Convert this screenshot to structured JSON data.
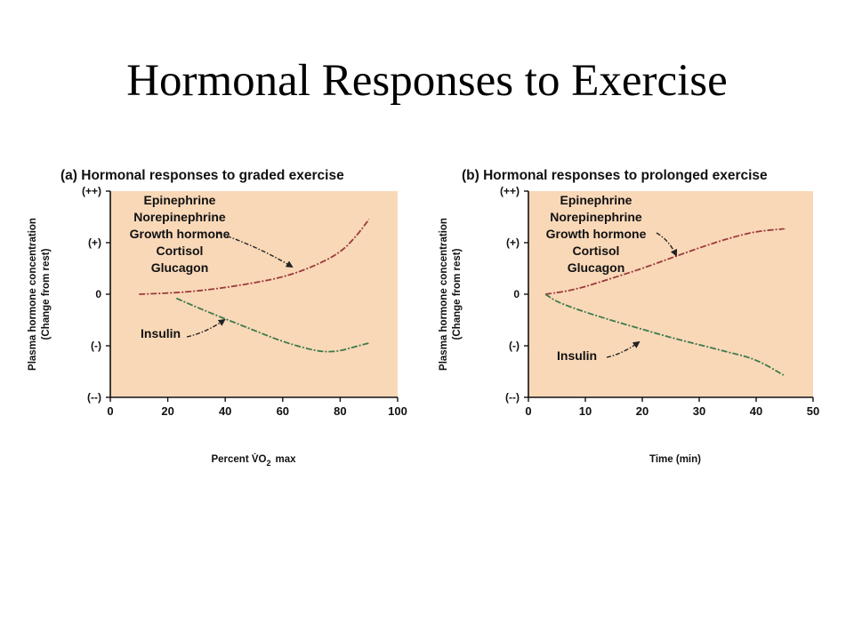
{
  "slide": {
    "title": "Hormonal Responses to Exercise"
  },
  "colors": {
    "panel_bg": "#f9d8b8",
    "rising_line": "#9b3a3a",
    "falling_line": "#3d7a4a",
    "arrow": "#222222"
  },
  "chart_data": [
    {
      "type": "line",
      "title": "(a) Hormonal responses to graded exercise",
      "xlabel_main": "Percent V̇O",
      "xlabel_sub": "2",
      "xlabel_tail": "max",
      "ylabel_line1": "Plasma hormone concentration",
      "ylabel_line2": "(Change from rest)",
      "xlim": [
        0,
        100
      ],
      "x_ticks": [
        0,
        20,
        40,
        60,
        80,
        100
      ],
      "ylim": [
        -2,
        2
      ],
      "y_ticks": [
        {
          "value": 2,
          "label": "(++)"
        },
        {
          "value": 1,
          "label": "(+)"
        },
        {
          "value": 0,
          "label": "0"
        },
        {
          "value": -1,
          "label": "(-)"
        },
        {
          "value": -2,
          "label": "(--)"
        }
      ],
      "grid": false,
      "series": [
        {
          "labels": [
            "Epinephrine",
            "Norepinephrine",
            "Growth hormone",
            "Cortisol",
            "Glucagon"
          ],
          "color_key": "rising_line",
          "x": [
            10,
            20,
            30,
            40,
            50,
            60,
            70,
            80,
            86,
            90
          ],
          "y": [
            0,
            0.02,
            0.06,
            0.13,
            0.22,
            0.33,
            0.52,
            0.8,
            1.15,
            1.45
          ]
        },
        {
          "labels": [
            "Insulin"
          ],
          "color_key": "falling_line",
          "x": [
            23,
            30,
            40,
            50,
            60,
            70,
            75,
            80,
            85,
            90
          ],
          "y": [
            -0.08,
            -0.25,
            -0.48,
            -0.7,
            -0.92,
            -1.08,
            -1.12,
            -1.1,
            -1.02,
            -0.95
          ]
        }
      ]
    },
    {
      "type": "line",
      "title": "(b) Hormonal responses to prolonged exercise",
      "xlabel_main": "Time (min)",
      "xlabel_sub": "",
      "xlabel_tail": "",
      "ylabel_line1": "Plasma hormone concentration",
      "ylabel_line2": "(Change from rest)",
      "xlim": [
        0,
        50
      ],
      "x_ticks": [
        0,
        10,
        20,
        30,
        40,
        50
      ],
      "ylim": [
        -2,
        2
      ],
      "y_ticks": [
        {
          "value": 2,
          "label": "(++)"
        },
        {
          "value": 1,
          "label": "(+)"
        },
        {
          "value": 0,
          "label": "0"
        },
        {
          "value": -1,
          "label": "(-)"
        },
        {
          "value": -2,
          "label": "(--)"
        }
      ],
      "grid": false,
      "series": [
        {
          "labels": [
            "Epinephrine",
            "Norepinephrine",
            "Growth hormone",
            "Cortisol",
            "Glucagon"
          ],
          "color_key": "rising_line",
          "x": [
            3,
            8,
            15,
            20,
            25,
            30,
            35,
            40,
            45
          ],
          "y": [
            0,
            0.08,
            0.32,
            0.5,
            0.7,
            0.9,
            1.08,
            1.22,
            1.27
          ]
        },
        {
          "labels": [
            "Insulin"
          ],
          "color_key": "falling_line",
          "x": [
            3,
            5,
            10,
            15,
            20,
            25,
            30,
            35,
            40,
            45
          ],
          "y": [
            0,
            -0.15,
            -0.35,
            -0.52,
            -0.68,
            -0.84,
            -0.98,
            -1.12,
            -1.26,
            -1.58
          ]
        }
      ]
    }
  ]
}
